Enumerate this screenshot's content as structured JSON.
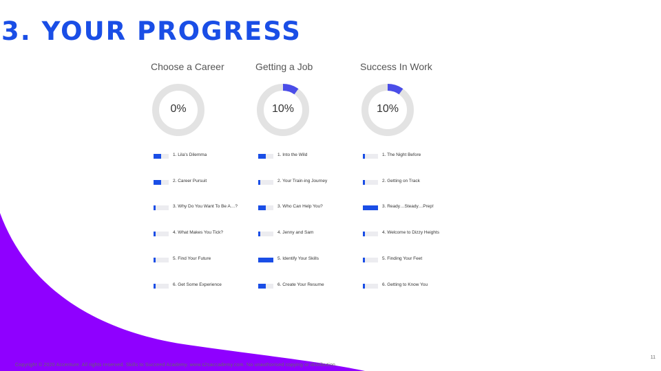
{
  "slide": {
    "title": "3. YOUR PROGRESS",
    "page_number": "11",
    "copyright": "Copyright © 2020 Accenture. All rights reserved. Skills to Succeed Academy. www.s2saccademy.com. No unauthorised copying or distribution.",
    "accent_purple": "#8f00ff",
    "accent_blue": "#1a4ee6"
  },
  "sections": [
    {
      "title": "Choose a Career",
      "percent_label": "0%",
      "progress": 0.0,
      "lessons": [
        {
          "label": "1. Lila's Dilemma",
          "progress": 0.5
        },
        {
          "label": "2. Career Pursuit",
          "progress": 0.5
        },
        {
          "label": "3. Why Do You Want To Be A…?",
          "progress": 0.15
        },
        {
          "label": "4. What Makes You Tick?",
          "progress": 0.15
        },
        {
          "label": "5. Find Your Future",
          "progress": 0.15
        },
        {
          "label": "6. Get Some Experience",
          "progress": 0.15
        }
      ]
    },
    {
      "title": "Getting a Job",
      "percent_label": "10%",
      "progress": 0.1,
      "lessons": [
        {
          "label": "1. Into the Wild",
          "progress": 0.5
        },
        {
          "label": "2. Your Train-ing Journey",
          "progress": 0.15
        },
        {
          "label": "3. Who Can Help You?",
          "progress": 0.5
        },
        {
          "label": "4. Jenny and Sam",
          "progress": 0.15
        },
        {
          "label": "5. Identify Your Skills",
          "progress": 1.0
        },
        {
          "label": "6. Create Your Resume",
          "progress": 0.5
        }
      ]
    },
    {
      "title": "Success In Work",
      "percent_label": "10%",
      "progress": 0.1,
      "lessons": [
        {
          "label": "1. The Night Before",
          "progress": 0.15
        },
        {
          "label": "2. Getting on Track",
          "progress": 0.15
        },
        {
          "label": "3. Ready…Steady…Prep!",
          "progress": 1.0
        },
        {
          "label": "4. Welcome to Dizzy Heights",
          "progress": 0.15
        },
        {
          "label": "5. Finding Your Feet",
          "progress": 0.15
        },
        {
          "label": "6. Getting to Know You",
          "progress": 0.15
        }
      ]
    }
  ]
}
